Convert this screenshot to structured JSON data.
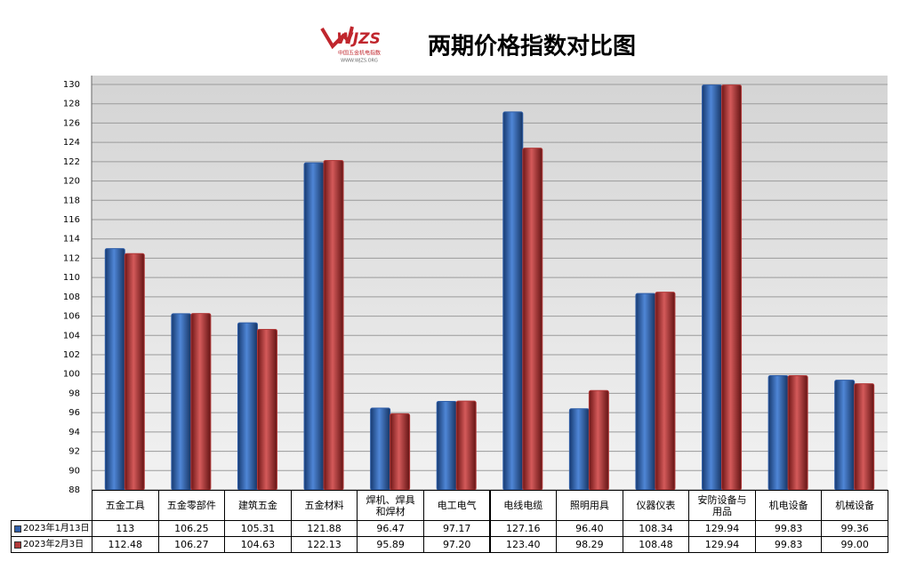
{
  "chart_data": {
    "type": "bar",
    "title": "两期价格指数对比图",
    "logo": {
      "text": "WJZS",
      "subtitle": "中国五金机电指数",
      "url": "WWW.WJZS.ORG"
    },
    "categories": [
      "五金工具",
      "五金零部件",
      "建筑五金",
      "五金材料",
      "焊机、焊具和焊材",
      "电工电气",
      "电线电缆",
      "照明用具",
      "仪器仪表",
      "安防设备与用品",
      "机电设备",
      "机械设备"
    ],
    "series": [
      {
        "name": "2023年1月13日",
        "color": "#2f5ea8",
        "values": [
          113,
          106.25,
          105.31,
          121.88,
          96.47,
          97.17,
          127.16,
          96.4,
          108.34,
          129.94,
          99.83,
          99.36
        ],
        "value_labels": [
          "113",
          "106.25",
          "105.31",
          "121.88",
          "96.47",
          "97.17",
          "127.16",
          "96.40",
          "108.34",
          "129.94",
          "99.83",
          "99.36"
        ]
      },
      {
        "name": "2023年2月3日",
        "color": "#b23a3a",
        "values": [
          112.48,
          106.27,
          104.63,
          122.13,
          95.89,
          97.2,
          123.4,
          98.29,
          108.48,
          129.94,
          99.83,
          99
        ],
        "value_labels": [
          "112.48",
          "106.27",
          "104.63",
          "122.13",
          "95.89",
          "97.20",
          "123.40",
          "98.29",
          "108.48",
          "129.94",
          "99.83",
          "99.00"
        ]
      }
    ],
    "ylim": [
      88,
      130
    ],
    "yticks": [
      88,
      90,
      92,
      94,
      96,
      98,
      100,
      102,
      104,
      106,
      108,
      110,
      112,
      114,
      116,
      118,
      120,
      122,
      124,
      126,
      128,
      130
    ],
    "grid": true
  }
}
